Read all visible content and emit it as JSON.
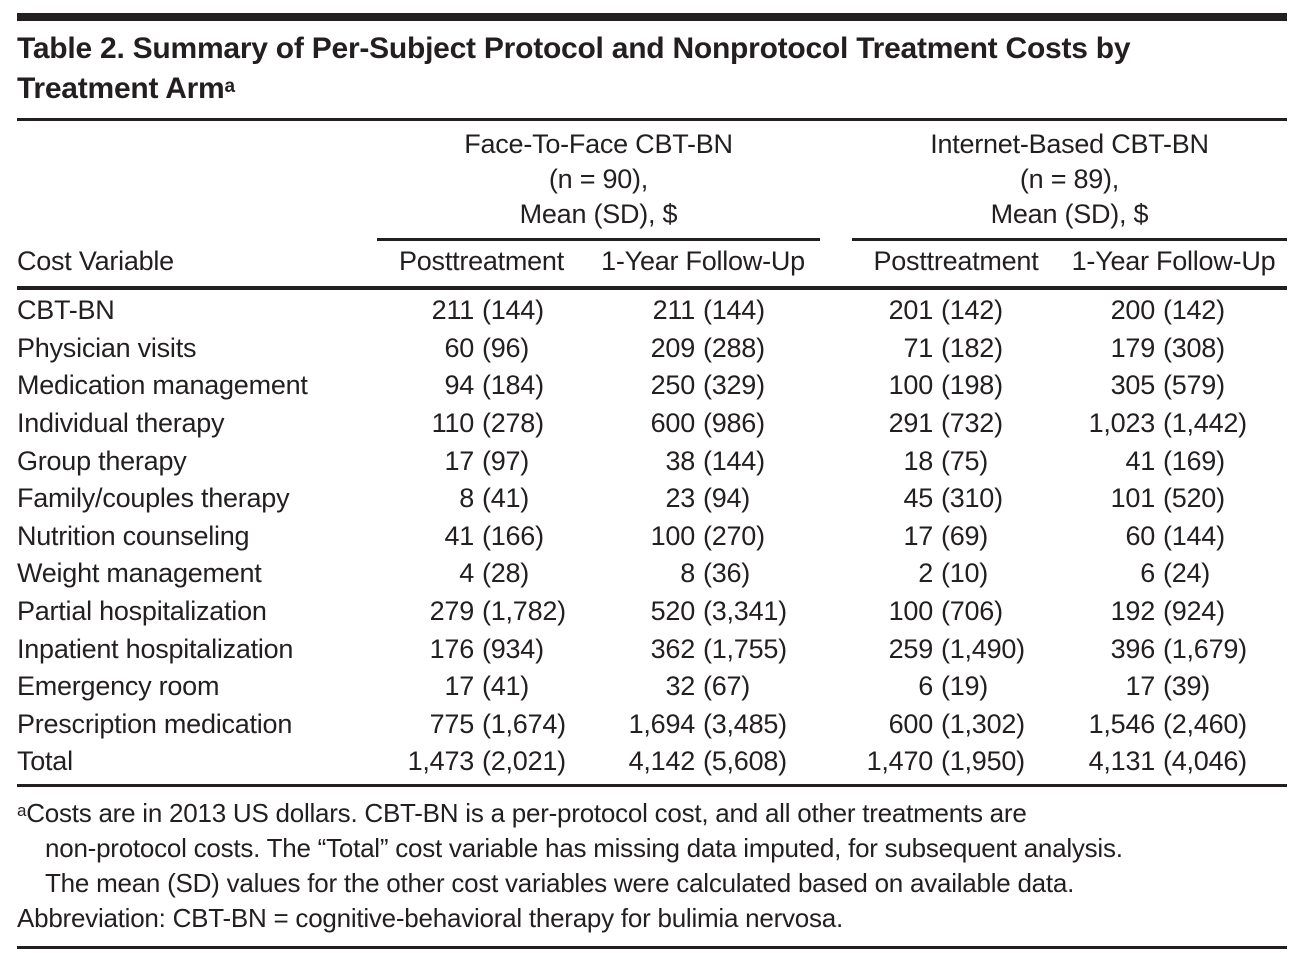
{
  "page": {
    "title": "Table 2. Summary of Per-Subject Protocol and Nonprotocol Treatment Costs by\nTreatment Arm",
    "title_footnote_marker": "a"
  },
  "header": {
    "row_header": "Cost Variable",
    "groups": [
      {
        "lines": [
          "Face-To-Face CBT-BN",
          "(n = 90),",
          "Mean (SD), $"
        ],
        "subcolumns": [
          "Posttreatment",
          "1-Year Follow-Up"
        ]
      },
      {
        "lines": [
          "Internet-Based CBT-BN",
          "(n = 89),",
          "Mean (SD), $"
        ],
        "subcolumns": [
          "Posttreatment",
          "1-Year Follow-Up"
        ]
      }
    ]
  },
  "rows": [
    {
      "label": "CBT-BN",
      "values": [
        {
          "mean": "211",
          "sd": "(144)"
        },
        {
          "mean": "211",
          "sd": "(144)"
        },
        {
          "mean": "201",
          "sd": "(142)"
        },
        {
          "mean": "200",
          "sd": "(142)"
        }
      ]
    },
    {
      "label": "Physician visits",
      "values": [
        {
          "mean": "60",
          "sd": "(96)"
        },
        {
          "mean": "209",
          "sd": "(288)"
        },
        {
          "mean": "71",
          "sd": "(182)"
        },
        {
          "mean": "179",
          "sd": "(308)"
        }
      ]
    },
    {
      "label": "Medication management",
      "values": [
        {
          "mean": "94",
          "sd": "(184)"
        },
        {
          "mean": "250",
          "sd": "(329)"
        },
        {
          "mean": "100",
          "sd": "(198)"
        },
        {
          "mean": "305",
          "sd": "(579)"
        }
      ]
    },
    {
      "label": "Individual therapy",
      "values": [
        {
          "mean": "110",
          "sd": "(278)"
        },
        {
          "mean": "600",
          "sd": "(986)"
        },
        {
          "mean": "291",
          "sd": "(732)"
        },
        {
          "mean": "1,023",
          "sd": "(1,442)"
        }
      ]
    },
    {
      "label": "Group therapy",
      "values": [
        {
          "mean": "17",
          "sd": "(97)"
        },
        {
          "mean": "38",
          "sd": "(144)"
        },
        {
          "mean": "18",
          "sd": "(75)"
        },
        {
          "mean": "41",
          "sd": "(169)"
        }
      ]
    },
    {
      "label": "Family/couples therapy",
      "values": [
        {
          "mean": "8",
          "sd": "(41)"
        },
        {
          "mean": "23",
          "sd": "(94)"
        },
        {
          "mean": "45",
          "sd": "(310)"
        },
        {
          "mean": "101",
          "sd": "(520)"
        }
      ]
    },
    {
      "label": "Nutrition counseling",
      "values": [
        {
          "mean": "41",
          "sd": "(166)"
        },
        {
          "mean": "100",
          "sd": "(270)"
        },
        {
          "mean": "17",
          "sd": "(69)"
        },
        {
          "mean": "60",
          "sd": "(144)"
        }
      ]
    },
    {
      "label": "Weight management",
      "values": [
        {
          "mean": "4",
          "sd": "(28)"
        },
        {
          "mean": "8",
          "sd": "(36)"
        },
        {
          "mean": "2",
          "sd": "(10)"
        },
        {
          "mean": "6",
          "sd": "(24)"
        }
      ]
    },
    {
      "label": "Partial hospitalization",
      "values": [
        {
          "mean": "279",
          "sd": "(1,782)"
        },
        {
          "mean": "520",
          "sd": "(3,341)"
        },
        {
          "mean": "100",
          "sd": "(706)"
        },
        {
          "mean": "192",
          "sd": "(924)"
        }
      ]
    },
    {
      "label": "Inpatient hospitalization",
      "values": [
        {
          "mean": "176",
          "sd": "(934)"
        },
        {
          "mean": "362",
          "sd": "(1,755)"
        },
        {
          "mean": "259",
          "sd": "(1,490)"
        },
        {
          "mean": "396",
          "sd": "(1,679)"
        }
      ]
    },
    {
      "label": "Emergency room",
      "values": [
        {
          "mean": "17",
          "sd": "(41)"
        },
        {
          "mean": "32",
          "sd": "(67)"
        },
        {
          "mean": "6",
          "sd": "(19)"
        },
        {
          "mean": "17",
          "sd": "(39)"
        }
      ]
    },
    {
      "label": "Prescription medication",
      "values": [
        {
          "mean": "775",
          "sd": "(1,674)"
        },
        {
          "mean": "1,694",
          "sd": "(3,485)"
        },
        {
          "mean": "600",
          "sd": "(1,302)"
        },
        {
          "mean": "1,546",
          "sd": "(2,460)"
        }
      ]
    },
    {
      "label": "Total",
      "values": [
        {
          "mean": "1,473",
          "sd": "(2,021)"
        },
        {
          "mean": "4,142",
          "sd": "(5,608)"
        },
        {
          "mean": "1,470",
          "sd": "(1,950)"
        },
        {
          "mean": "4,131",
          "sd": "(4,046)"
        }
      ]
    }
  ],
  "footnote": {
    "marker": "a",
    "lines": [
      "Costs are in 2013 US dollars. CBT-BN is a per-protocol cost, and all other treatments are",
      "non-protocol costs. The “Total” cost variable has missing data imputed, for subsequent analysis.",
      "The mean (SD) values for the other cost variables were calculated based on available data."
    ],
    "abbreviation": "Abbreviation: CBT-BN = cognitive-behavioral therapy for bulimia nervosa."
  },
  "colors": {
    "text": "#231f20",
    "background": "#ffffff"
  }
}
